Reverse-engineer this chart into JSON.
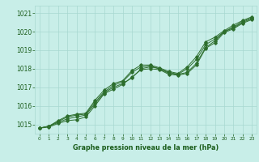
{
  "x": [
    0,
    1,
    2,
    3,
    4,
    5,
    6,
    7,
    8,
    9,
    10,
    11,
    12,
    13,
    14,
    15,
    16,
    17,
    18,
    19,
    20,
    21,
    22,
    23
  ],
  "line1": [
    1014.8,
    1014.9,
    1015.1,
    1015.3,
    1015.4,
    1015.5,
    1016.1,
    1016.7,
    1017.0,
    1017.2,
    1017.5,
    1018.0,
    1018.1,
    1018.0,
    1017.75,
    1017.7,
    1017.8,
    1018.3,
    1019.15,
    1019.5,
    1020.0,
    1020.2,
    1020.5,
    1020.7
  ],
  "line2": [
    1014.8,
    1014.9,
    1015.15,
    1015.4,
    1015.5,
    1015.55,
    1016.2,
    1016.75,
    1017.1,
    1017.3,
    1017.8,
    1018.1,
    1018.15,
    1018.0,
    1017.8,
    1017.7,
    1018.0,
    1018.5,
    1019.3,
    1019.6,
    1020.0,
    1020.25,
    1020.55,
    1020.75
  ],
  "line3": [
    1014.8,
    1014.9,
    1015.2,
    1015.45,
    1015.55,
    1015.6,
    1016.3,
    1016.85,
    1017.2,
    1017.35,
    1017.9,
    1018.2,
    1018.2,
    1018.05,
    1017.85,
    1017.75,
    1018.1,
    1018.65,
    1019.45,
    1019.7,
    1020.05,
    1020.35,
    1020.6,
    1020.8
  ],
  "line4": [
    1014.8,
    1014.85,
    1015.05,
    1015.2,
    1015.25,
    1015.4,
    1016.0,
    1016.65,
    1016.9,
    1017.15,
    1017.55,
    1017.95,
    1018.0,
    1017.95,
    1017.7,
    1017.65,
    1017.75,
    1018.2,
    1019.1,
    1019.4,
    1019.95,
    1020.15,
    1020.45,
    1020.65
  ],
  "line_color": "#2d6e2d",
  "marker_color": "#2d6e2d",
  "bg_color": "#c8eee8",
  "grid_color": "#a8d8d0",
  "text_color": "#1a5c1a",
  "ylim": [
    1014.5,
    1021.4
  ],
  "yticks": [
    1015,
    1016,
    1017,
    1018,
    1019,
    1020,
    1021
  ],
  "xticks": [
    0,
    1,
    2,
    3,
    4,
    5,
    6,
    7,
    8,
    9,
    10,
    11,
    12,
    13,
    14,
    15,
    16,
    17,
    18,
    19,
    20,
    21,
    22,
    23
  ],
  "xlabel": "Graphe pression niveau de la mer (hPa)"
}
